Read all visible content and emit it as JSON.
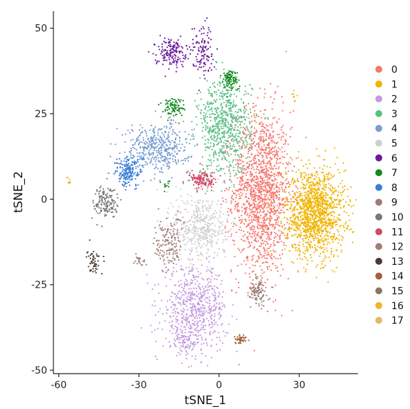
{
  "chart_data": {
    "type": "scatter",
    "title": "",
    "xlabel": "tSNE_1",
    "ylabel": "tSNE_2",
    "xlim": [
      -62,
      52
    ],
    "ylim": [
      -51,
      55
    ],
    "x_ticks": [
      -60,
      -30,
      0,
      30
    ],
    "y_ticks": [
      50,
      25,
      0,
      -25,
      -50
    ],
    "x_tick_labels": [
      "-60",
      "-30",
      "0",
      "30"
    ],
    "y_tick_labels": [
      "50",
      "25",
      "0",
      "-25",
      "-50"
    ],
    "grid": false,
    "legend": {
      "placement": "right"
    },
    "clusters": [
      {
        "name": "0",
        "color": "#F8766D",
        "regions": [
          {
            "cx": 16,
            "cy": 2,
            "sx": 5.5,
            "sy": 12,
            "n": 1500
          }
        ]
      },
      {
        "name": "1",
        "color": "#F0B400",
        "regions": [
          {
            "cx": 36,
            "cy": -4,
            "sx": 5.5,
            "sy": 6.5,
            "n": 1300
          }
        ]
      },
      {
        "name": "2",
        "color": "#C39BE0",
        "regions": [
          {
            "cx": -9,
            "cy": -32,
            "sx": 6,
            "sy": 6,
            "n": 650
          },
          {
            "cx": -13,
            "cy": -41,
            "sx": 2.5,
            "sy": 2.5,
            "n": 80
          }
        ]
      },
      {
        "name": "3",
        "color": "#5CBF87",
        "regions": [
          {
            "cx": 2,
            "cy": 21,
            "sx": 5,
            "sy": 7,
            "n": 700
          }
        ]
      },
      {
        "name": "4",
        "color": "#7A9CD2",
        "regions": [
          {
            "cx": -23,
            "cy": 15,
            "sx": 6,
            "sy": 3.5,
            "n": 450
          }
        ]
      },
      {
        "name": "5",
        "color": "#CFCFCF",
        "regions": [
          {
            "cx": -7,
            "cy": -8,
            "sx": 5,
            "sy": 5,
            "n": 450
          }
        ]
      },
      {
        "name": "6",
        "color": "#6A1B9A",
        "regions": [
          {
            "cx": -18,
            "cy": 43,
            "sx": 3,
            "sy": 2,
            "n": 160
          },
          {
            "cx": -6,
            "cy": 44,
            "sx": 2,
            "sy": 4,
            "n": 110
          }
        ]
      },
      {
        "name": "7",
        "color": "#118A1E",
        "regions": [
          {
            "cx": 4,
            "cy": 35,
            "sx": 1.6,
            "sy": 1.6,
            "n": 90
          },
          {
            "cx": -17,
            "cy": 27,
            "sx": 2,
            "sy": 1.4,
            "n": 90
          },
          {
            "cx": -20,
            "cy": 4,
            "sx": 0.8,
            "sy": 0.8,
            "n": 12
          }
        ]
      },
      {
        "name": "8",
        "color": "#3A7DD8",
        "regions": [
          {
            "cx": -34,
            "cy": 8,
            "sx": 2.5,
            "sy": 2.2,
            "n": 180
          }
        ]
      },
      {
        "name": "9",
        "color": "#9E7A74",
        "regions": [
          {
            "cx": -19,
            "cy": -13,
            "sx": 2.5,
            "sy": 4,
            "n": 150
          }
        ]
      },
      {
        "name": "10",
        "color": "#777777",
        "regions": [
          {
            "cx": -42,
            "cy": -1,
            "sx": 2.5,
            "sy": 2.5,
            "n": 150
          }
        ]
      },
      {
        "name": "11",
        "color": "#D14A67",
        "regions": [
          {
            "cx": -6,
            "cy": 5.5,
            "sx": 2.5,
            "sy": 1.3,
            "n": 130
          }
        ]
      },
      {
        "name": "12",
        "color": "#A07E79",
        "regions": [
          {
            "cx": 15,
            "cy": -27,
            "sx": 1.6,
            "sy": 2.4,
            "n": 70
          },
          {
            "cx": -30,
            "cy": -18,
            "sx": 1.3,
            "sy": 0.7,
            "n": 20
          }
        ]
      },
      {
        "name": "13",
        "color": "#4D3A33",
        "regions": [
          {
            "cx": -47,
            "cy": -18,
            "sx": 1.2,
            "sy": 1.8,
            "n": 55
          }
        ]
      },
      {
        "name": "14",
        "color": "#A65D3A",
        "regions": [
          {
            "cx": 8,
            "cy": -41,
            "sx": 1.0,
            "sy": 0.7,
            "n": 40
          }
        ]
      },
      {
        "name": "15",
        "color": "#8D7563",
        "regions": [
          {
            "cx": 14,
            "cy": -27,
            "sx": 1.2,
            "sy": 1.2,
            "n": 25
          }
        ]
      },
      {
        "name": "16",
        "color": "#F3B32E",
        "regions": [
          {
            "cx": 28,
            "cy": 30.5,
            "sx": 0.5,
            "sy": 1.2,
            "n": 8
          },
          {
            "cx": -56,
            "cy": 5,
            "sx": 0.4,
            "sy": 1.2,
            "n": 8
          }
        ]
      },
      {
        "name": "17",
        "color": "#DDB86E",
        "regions": [
          {
            "cx": 13.5,
            "cy": 24,
            "sx": 0.4,
            "sy": 1.0,
            "n": 6
          }
        ]
      }
    ]
  }
}
